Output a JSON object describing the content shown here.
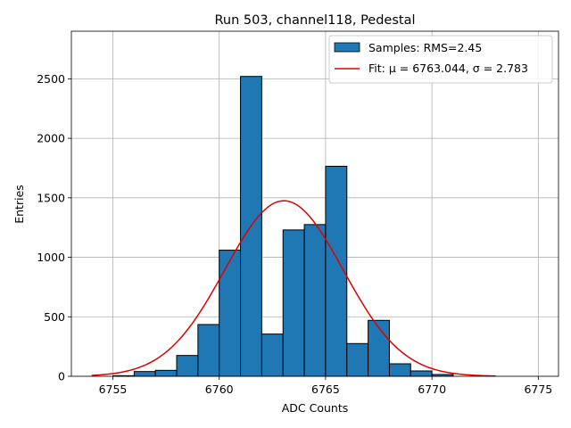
{
  "chart_data": {
    "type": "bar",
    "title": "Run 503, channel118, Pedestal",
    "xlabel": "ADC Counts",
    "ylabel": "Entries",
    "xlim": [
      6753.05,
      6775.95
    ],
    "ylim": [
      0,
      2900
    ],
    "xticks": [
      6755,
      6760,
      6765,
      6770,
      6775
    ],
    "yticks": [
      0,
      500,
      1000,
      1500,
      2000,
      2500
    ],
    "grid": true,
    "legend_position": "top-right",
    "histogram": {
      "name": "Samples: RMS=2.45",
      "color": "#1f77b4",
      "bin_left_edges": [
        6755,
        6756,
        6757,
        6758,
        6759,
        6760,
        6761,
        6762,
        6763,
        6764,
        6765,
        6766,
        6767,
        6768,
        6769,
        6770
      ],
      "values": [
        5,
        40,
        50,
        175,
        435,
        1060,
        2520,
        355,
        1230,
        1275,
        1765,
        275,
        470,
        105,
        45,
        15
      ]
    },
    "fit": {
      "name": "Fit: μ = 6763.044, σ = 2.783",
      "color": "#e00000",
      "mu": 6763.044,
      "sigma": 2.783,
      "amplitude": 1475,
      "x_range": [
        6754,
        6773
      ]
    }
  }
}
